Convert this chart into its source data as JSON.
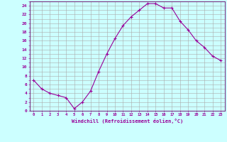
{
  "x": [
    0,
    1,
    2,
    3,
    4,
    5,
    6,
    7,
    8,
    9,
    10,
    11,
    12,
    13,
    14,
    15,
    16,
    17,
    18,
    19,
    20,
    21,
    22,
    23
  ],
  "y": [
    7,
    5,
    4,
    3.5,
    3,
    0.5,
    2,
    4.5,
    9,
    13,
    16.5,
    19.5,
    21.5,
    23,
    24.5,
    24.5,
    23.5,
    23.5,
    20.5,
    18.5,
    16,
    14.5,
    12.5,
    11.5
  ],
  "line_color": "#990099",
  "marker": "+",
  "bg_color": "#ccffff",
  "grid_color": "#aaaaaa",
  "xlabel": "Windchill (Refroidissement éolien,°C)",
  "xlabel_color": "#990099",
  "ylabel_ticks": [
    0,
    2,
    4,
    6,
    8,
    10,
    12,
    14,
    16,
    18,
    20,
    22,
    24
  ],
  "xlim": [
    -0.5,
    23.5
  ],
  "ylim": [
    0,
    25
  ],
  "figsize": [
    3.2,
    2.0
  ],
  "dpi": 100,
  "tick_color": "#990099",
  "axis_color": "#660066",
  "font_family": "monospace"
}
